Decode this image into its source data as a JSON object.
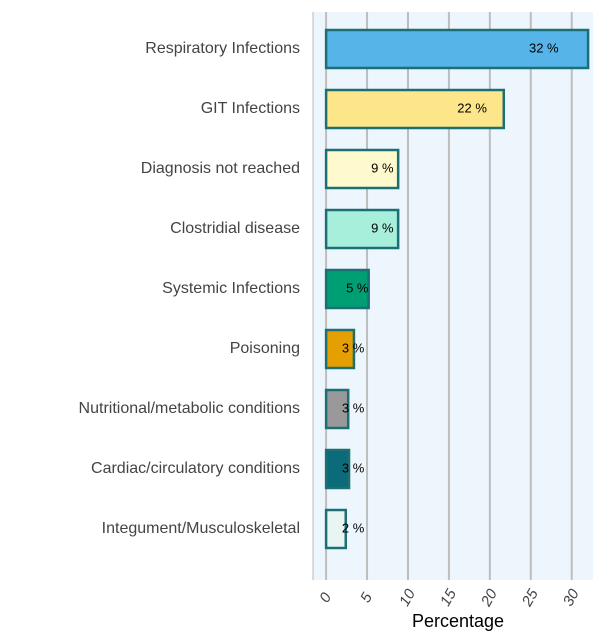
{
  "chart_data": {
    "type": "barh",
    "xlabel": "Percentage",
    "categories": [
      "Respiratory Infections",
      "GIT Infections",
      "Diagnosis not reached",
      "Clostridial disease",
      "Systemic Infections",
      "Poisoning",
      "Nutritional/metabolic conditions",
      "Cardiac/circulatory conditions",
      "Integument/Musculoskeletal"
    ],
    "values": [
      32,
      21.7,
      8.8,
      8.8,
      5.2,
      3.4,
      2.7,
      2.8,
      2.4
    ],
    "value_labels": [
      "32 %",
      "22 %",
      "9 %",
      "9 %",
      "5 %",
      "3 %",
      "3 %",
      "3 %",
      "2 %"
    ],
    "colors": [
      "#56b4e9",
      "#fde68a",
      "#fffacd",
      "#a7eedb",
      "#009e73",
      "#e69f00",
      "#999999",
      "#0b6b78",
      "#e9f5f3"
    ],
    "edge_color": "#1b6f75",
    "xlim": [
      -1.6,
      32.6
    ],
    "xticks": [
      0,
      5,
      10,
      15,
      20,
      25,
      30
    ],
    "grid": true
  }
}
